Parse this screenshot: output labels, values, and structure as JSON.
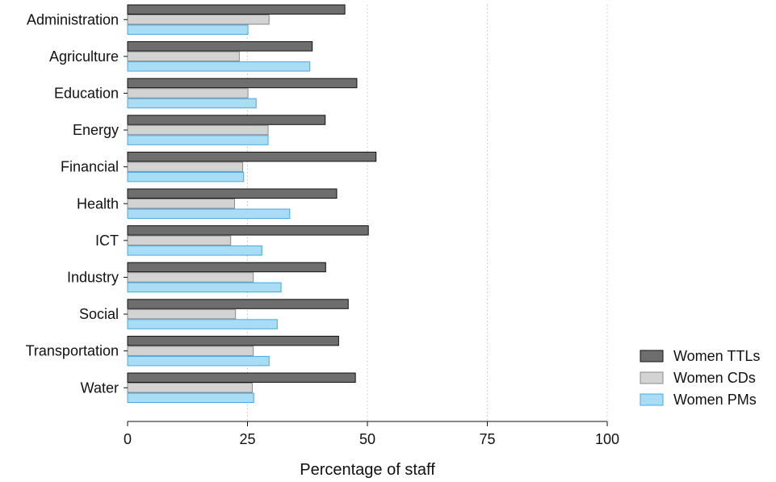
{
  "chart_data": {
    "type": "bar",
    "orientation": "horizontal",
    "categories": [
      "Administration",
      "Agriculture",
      "Education",
      "Energy",
      "Financial",
      "Health",
      "ICT",
      "Industry",
      "Social",
      "Transportation",
      "Water"
    ],
    "series": [
      {
        "name": "Women TTLs",
        "color": "#6e6e6e",
        "stroke": "#111111",
        "values": [
          45.3,
          38.5,
          47.8,
          41.2,
          51.8,
          43.6,
          50.2,
          41.3,
          46.0,
          44.0,
          47.5
        ]
      },
      {
        "name": "Women CDs",
        "color": "#d3d3d3",
        "stroke": "#8a8a8a",
        "values": [
          29.5,
          23.3,
          25.1,
          29.3,
          24.0,
          22.3,
          21.5,
          26.2,
          22.5,
          26.2,
          26.0
        ]
      },
      {
        "name": "Women PMs",
        "color": "#a9ddf6",
        "stroke": "#4aa8dc",
        "values": [
          25.1,
          38.0,
          26.8,
          29.3,
          24.2,
          33.8,
          28.0,
          32.0,
          31.2,
          29.5,
          26.3
        ]
      }
    ],
    "xlabel": "Percentage of staff",
    "ylabel": "",
    "xlim": [
      0,
      100
    ],
    "xticks": [
      0,
      25,
      50,
      75,
      100
    ],
    "grid": "vertical dotted",
    "legend_position": "bottom-right"
  }
}
